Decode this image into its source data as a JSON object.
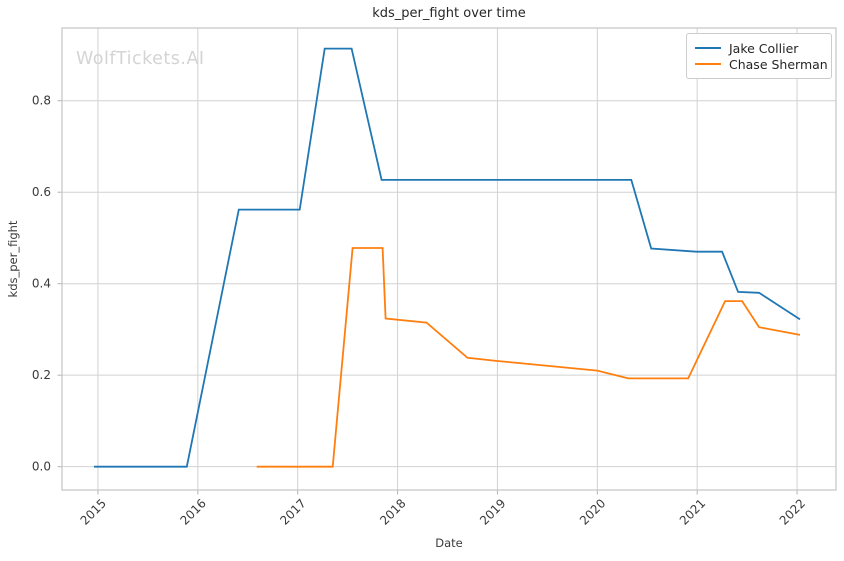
{
  "watermark": "WolfTickets.AI",
  "colors": {
    "background": "#ffffff",
    "grid": "#d2d2d2",
    "spine": "#c4c4c4",
    "tick": "#b4b4b4",
    "tick_text": "#3a3a3a",
    "title_text": "#262626",
    "watermark_text": "#d4d4d4",
    "legend_border": "#cccccc",
    "series_blue": "#1f77b4",
    "series_orange": "#ff7f0e"
  },
  "chart_data": {
    "type": "line",
    "title": "kds_per_fight over time",
    "xlabel": "Date",
    "ylabel": "kds_per_fight",
    "grid": true,
    "legend_position": "upper right",
    "xlim": [
      2014.64,
      2022.39
    ],
    "ylim": [
      -0.051,
      0.959
    ],
    "x_ticks": [
      2015,
      2016,
      2017,
      2018,
      2019,
      2020,
      2021,
      2022
    ],
    "x_tick_labels": [
      "2015",
      "2016",
      "2017",
      "2018",
      "2019",
      "2020",
      "2021",
      "2022"
    ],
    "y_ticks": [
      0.0,
      0.2,
      0.4,
      0.6,
      0.8
    ],
    "y_tick_labels": [
      "0.0",
      "0.2",
      "0.4",
      "0.6",
      "0.8"
    ],
    "series": [
      {
        "name": "Jake Collier",
        "color": "#1f77b4",
        "points": [
          [
            2014.96,
            0.0
          ],
          [
            2015.89,
            0.0
          ],
          [
            2016.41,
            0.562
          ],
          [
            2017.02,
            0.562
          ],
          [
            2017.27,
            0.914
          ],
          [
            2017.54,
            0.914
          ],
          [
            2017.84,
            0.627
          ],
          [
            2020.34,
            0.627
          ],
          [
            2020.54,
            0.477
          ],
          [
            2020.99,
            0.47
          ],
          [
            2021.25,
            0.47
          ],
          [
            2021.41,
            0.382
          ],
          [
            2021.62,
            0.38
          ],
          [
            2022.03,
            0.322
          ]
        ]
      },
      {
        "name": "Chase Sherman",
        "color": "#ff7f0e",
        "points": [
          [
            2016.59,
            0.0
          ],
          [
            2017.35,
            0.0
          ],
          [
            2017.55,
            0.478
          ],
          [
            2017.85,
            0.478
          ],
          [
            2017.88,
            0.324
          ],
          [
            2018.29,
            0.315
          ],
          [
            2018.7,
            0.238
          ],
          [
            2019.0,
            0.231
          ],
          [
            2020.0,
            0.21
          ],
          [
            2020.31,
            0.193
          ],
          [
            2020.91,
            0.193
          ],
          [
            2021.28,
            0.362
          ],
          [
            2021.45,
            0.362
          ],
          [
            2021.62,
            0.305
          ],
          [
            2022.03,
            0.288
          ]
        ]
      }
    ]
  }
}
